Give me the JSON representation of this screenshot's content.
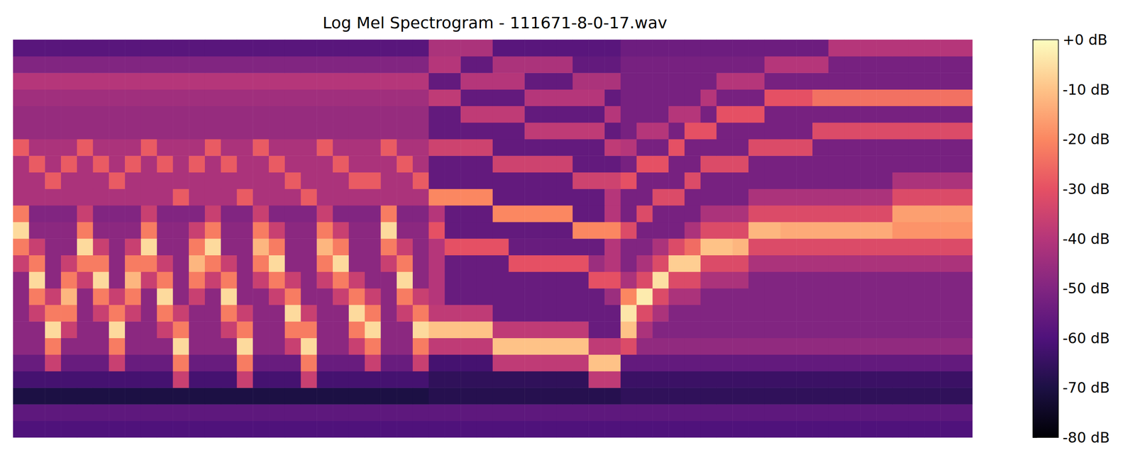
{
  "chart_data": {
    "type": "heatmap",
    "title": "Log Mel Spectrogram - 111671-8-0-17.wav",
    "tick_labels": false,
    "cells": [
      [
        -60,
        -60,
        -60,
        -60,
        -60,
        -60,
        -60,
        -60,
        -60,
        -60,
        -60,
        -60,
        -60,
        -60,
        -60,
        -60,
        -60,
        -60,
        -60,
        -60,
        -60,
        -60,
        -60,
        -60,
        -60,
        -60,
        -60,
        -60,
        -60,
        -60,
        -60,
        -60,
        -60,
        -60,
        -60,
        -60,
        -60,
        -60,
        -60,
        -60,
        -60,
        -60,
        -60,
        -60,
        -60,
        -60,
        -60,
        -60,
        -60,
        -60,
        -60,
        -60,
        -60,
        -60,
        -60,
        -60,
        -60,
        -60,
        -60,
        -60
      ],
      [
        -57,
        -57,
        -57,
        -57,
        -57,
        -57,
        -57,
        -57,
        -57,
        -57,
        -57,
        -57,
        -57,
        -57,
        -57,
        -57,
        -57,
        -57,
        -57,
        -57,
        -57,
        -57,
        -57,
        -57,
        -57,
        -57,
        -57,
        -57,
        -57,
        -57,
        -57,
        -57,
        -57,
        -57,
        -57,
        -57,
        -57,
        -57,
        -57,
        -57,
        -57,
        -57,
        -57,
        -57,
        -57,
        -57,
        -57,
        -57,
        -57,
        -57,
        -57,
        -57,
        -57,
        -57,
        -57,
        -57,
        -57,
        -57,
        -57,
        -57
      ],
      [
        -70,
        -70,
        -70,
        -70,
        -70,
        -70,
        -70,
        -70,
        -70,
        -70,
        -70,
        -70,
        -70,
        -70,
        -70,
        -70,
        -70,
        -70,
        -70,
        -70,
        -70,
        -70,
        -70,
        -70,
        -70,
        -70,
        -68,
        -68,
        -68,
        -68,
        -68,
        -68,
        -68,
        -68,
        -68,
        -68,
        -68,
        -68,
        -66,
        -66,
        -66,
        -66,
        -66,
        -66,
        -66,
        -66,
        -66,
        -66,
        -66,
        -66,
        -66,
        -66,
        -66,
        -66,
        -66,
        -66,
        -66,
        -66,
        -66,
        -66
      ],
      [
        -62,
        -62,
        -62,
        -62,
        -62,
        -62,
        -62,
        -62,
        -62,
        -62,
        -36,
        -62,
        -62,
        -62,
        -36,
        -62,
        -62,
        -62,
        -36,
        -62,
        -62,
        -62,
        -62,
        -62,
        -62,
        -62,
        -66,
        -66,
        -66,
        -66,
        -66,
        -66,
        -66,
        -66,
        -66,
        -66,
        -38,
        -38,
        -64,
        -64,
        -64,
        -64,
        -64,
        -64,
        -64,
        -64,
        -64,
        -64,
        -64,
        -64,
        -64,
        -64,
        -64,
        -64,
        -64,
        -64,
        -64,
        -64,
        -64,
        -64
      ],
      [
        -55,
        -55,
        -36,
        -55,
        -55,
        -55,
        -36,
        -55,
        -55,
        -55,
        -22,
        -55,
        -55,
        -55,
        -22,
        -55,
        -55,
        -55,
        -22,
        -55,
        -55,
        -55,
        -36,
        -55,
        -55,
        -36,
        -62,
        -62,
        -62,
        -62,
        -38,
        -38,
        -38,
        -38,
        -38,
        -38,
        -10,
        -10,
        -56,
        -56,
        -56,
        -56,
        -56,
        -56,
        -56,
        -56,
        -56,
        -56,
        -56,
        -56,
        -56,
        -56,
        -56,
        -56,
        -56,
        -56,
        -56,
        -56,
        -56,
        -56
      ],
      [
        -48,
        -48,
        -22,
        -48,
        -48,
        -48,
        -22,
        -48,
        -48,
        -48,
        -6,
        -48,
        -48,
        -48,
        -6,
        -48,
        -48,
        -36,
        -6,
        -48,
        -48,
        -36,
        -22,
        -48,
        -48,
        -22,
        -38,
        -38,
        -38,
        -38,
        -10,
        -10,
        -10,
        -10,
        -10,
        -10,
        -38,
        -38,
        -32,
        -47,
        -47,
        -47,
        -47,
        -47,
        -47,
        -47,
        -47,
        -47,
        -47,
        -47,
        -47,
        -47,
        -47,
        -47,
        -47,
        -47,
        -47,
        -47,
        -47,
        -47
      ],
      [
        -48,
        -48,
        -6,
        -36,
        -48,
        -48,
        -6,
        -48,
        -48,
        -36,
        -22,
        -48,
        -48,
        -36,
        -22,
        -48,
        -48,
        -22,
        -22,
        -48,
        -48,
        -22,
        -6,
        -48,
        -48,
        -6,
        -10,
        -10,
        -10,
        -10,
        -38,
        -38,
        -38,
        -38,
        -38,
        -38,
        -55,
        -55,
        -10,
        -42,
        -50,
        -50,
        -50,
        -50,
        -50,
        -50,
        -50,
        -50,
        -50,
        -50,
        -50,
        -50,
        -50,
        -50,
        -50,
        -50,
        -50,
        -50,
        -50,
        -50
      ],
      [
        -48,
        -36,
        -22,
        -22,
        -48,
        -36,
        -22,
        -36,
        -48,
        -22,
        -36,
        -48,
        -48,
        -22,
        -36,
        -48,
        -48,
        -6,
        -36,
        -48,
        -48,
        -6,
        -22,
        -48,
        -36,
        -22,
        -38,
        -38,
        -38,
        -38,
        -55,
        -55,
        -55,
        -55,
        -55,
        -55,
        -55,
        -55,
        -4,
        -32,
        -42,
        -50,
        -50,
        -50,
        -50,
        -50,
        -50,
        -50,
        -50,
        -50,
        -50,
        -50,
        -50,
        -50,
        -50,
        -50,
        -50,
        -50,
        -50,
        -50
      ],
      [
        -48,
        -22,
        -36,
        -12,
        -48,
        -22,
        -36,
        -22,
        -48,
        -6,
        -48,
        -36,
        -48,
        -6,
        -48,
        -48,
        -36,
        -22,
        -48,
        -48,
        -36,
        -22,
        -36,
        -48,
        -22,
        -36,
        -40,
        -55,
        -55,
        -55,
        -55,
        -55,
        -55,
        -55,
        -55,
        -55,
        -55,
        -45,
        -20,
        -3,
        -32,
        -42,
        -42,
        -50,
        -50,
        -50,
        -50,
        -50,
        -50,
        -50,
        -50,
        -50,
        -50,
        -50,
        -50,
        -50,
        -50,
        -50,
        -50,
        -50
      ],
      [
        -48,
        -6,
        -48,
        -22,
        -36,
        -6,
        -48,
        -12,
        -36,
        -22,
        -48,
        -22,
        -36,
        -22,
        -48,
        -36,
        -22,
        -36,
        -48,
        -36,
        -22,
        -36,
        -48,
        -48,
        -6,
        -48,
        -40,
        -55,
        -55,
        -55,
        -55,
        -55,
        -55,
        -55,
        -55,
        -55,
        -30,
        -30,
        -42,
        -32,
        -5,
        -32,
        -32,
        -42,
        -42,
        -42,
        -50,
        -50,
        -50,
        -50,
        -50,
        -50,
        -50,
        -50,
        -50,
        -50,
        -50,
        -50,
        -50,
        -50
      ],
      [
        -36,
        -22,
        -48,
        -36,
        -22,
        -22,
        -48,
        -22,
        -22,
        -36,
        -48,
        -12,
        -22,
        -36,
        -48,
        -22,
        -6,
        -48,
        -48,
        -22,
        -6,
        -48,
        -48,
        -36,
        -22,
        -48,
        -40,
        -55,
        -55,
        -55,
        -55,
        -30,
        -30,
        -30,
        -30,
        -30,
        -45,
        -40,
        -50,
        -42,
        -32,
        -8,
        -8,
        -32,
        -32,
        -32,
        -42,
        -42,
        -42,
        -42,
        -42,
        -42,
        -42,
        -42,
        -42,
        -42,
        -42,
        -42,
        -42,
        -42
      ],
      [
        -22,
        -36,
        -48,
        -48,
        -6,
        -36,
        -48,
        -36,
        -6,
        -48,
        -48,
        -22,
        -6,
        -48,
        -48,
        -12,
        -22,
        -48,
        -48,
        -12,
        -22,
        -48,
        -48,
        -22,
        -36,
        -48,
        -40,
        -30,
        -30,
        -30,
        -30,
        -55,
        -55,
        -55,
        -55,
        -55,
        -55,
        -40,
        -50,
        -50,
        -42,
        -32,
        -25,
        -10,
        -10,
        -12,
        -32,
        -32,
        -32,
        -32,
        -32,
        -32,
        -32,
        -32,
        -32,
        -32,
        -32,
        -32,
        -32,
        -32
      ],
      [
        -6,
        -48,
        -48,
        -48,
        -22,
        -48,
        -48,
        -48,
        -22,
        -48,
        -48,
        -36,
        -22,
        -48,
        -48,
        -22,
        -36,
        -48,
        -48,
        -22,
        -36,
        -48,
        -48,
        -6,
        -48,
        -48,
        -30,
        -56,
        -56,
        -56,
        -56,
        -56,
        -56,
        -56,
        -56,
        -20,
        -20,
        -20,
        -32,
        -52,
        -52,
        -52,
        -42,
        -32,
        -32,
        -32,
        -12,
        -12,
        -14,
        -14,
        -14,
        -14,
        -14,
        -14,
        -14,
        -18,
        -18,
        -18,
        -18,
        -18
      ],
      [
        -22,
        -50,
        -50,
        -50,
        -36,
        -50,
        -50,
        -50,
        -36,
        -50,
        -50,
        -50,
        -36,
        -50,
        -50,
        -36,
        -50,
        -50,
        -50,
        -36,
        -50,
        -50,
        -50,
        -22,
        -50,
        -50,
        -40,
        -56,
        -56,
        -56,
        -20,
        -20,
        -20,
        -20,
        -20,
        -56,
        -56,
        -40,
        -52,
        -32,
        -52,
        -52,
        -52,
        -42,
        -42,
        -42,
        -32,
        -32,
        -32,
        -32,
        -32,
        -32,
        -32,
        -32,
        -32,
        -16,
        -16,
        -16,
        -16,
        -16
      ],
      [
        -42,
        -42,
        -42,
        -42,
        -42,
        -42,
        -42,
        -42,
        -42,
        -42,
        -28,
        -42,
        -42,
        -42,
        -28,
        -42,
        -42,
        -42,
        -28,
        -42,
        -42,
        -42,
        -42,
        -42,
        -42,
        -42,
        -20,
        -20,
        -20,
        -20,
        -56,
        -56,
        -56,
        -56,
        -56,
        -56,
        -56,
        -40,
        -52,
        -52,
        -32,
        -32,
        -52,
        -52,
        -52,
        -52,
        -42,
        -42,
        -42,
        -42,
        -42,
        -42,
        -42,
        -42,
        -42,
        -32,
        -32,
        -32,
        -32,
        -32
      ],
      [
        -42,
        -42,
        -28,
        -42,
        -42,
        -42,
        -28,
        -42,
        -42,
        -42,
        -42,
        -42,
        -42,
        -42,
        -42,
        -42,
        -42,
        -28,
        -42,
        -42,
        -42,
        -28,
        -28,
        -42,
        -42,
        -28,
        -56,
        -56,
        -56,
        -56,
        -56,
        -56,
        -56,
        -56,
        -56,
        -35,
        -35,
        -35,
        -30,
        -52,
        -52,
        -52,
        -32,
        -52,
        -52,
        -52,
        -52,
        -52,
        -52,
        -52,
        -52,
        -52,
        -52,
        -52,
        -52,
        -42,
        -42,
        -42,
        -42,
        -42
      ],
      [
        -42,
        -28,
        -42,
        -28,
        -42,
        -28,
        -42,
        -28,
        -42,
        -28,
        -42,
        -28,
        -42,
        -28,
        -42,
        -42,
        -28,
        -42,
        -42,
        -42,
        -28,
        -42,
        -42,
        -42,
        -28,
        -42,
        -56,
        -56,
        -56,
        -56,
        -35,
        -35,
        -35,
        -35,
        -35,
        -56,
        -56,
        -56,
        -52,
        -30,
        -30,
        -52,
        -52,
        -32,
        -32,
        -32,
        -52,
        -52,
        -52,
        -52,
        -52,
        -52,
        -52,
        -52,
        -52,
        -52,
        -52,
        -52,
        -52,
        -52
      ],
      [
        -28,
        -42,
        -42,
        -42,
        -28,
        -42,
        -42,
        -42,
        -28,
        -42,
        -42,
        -42,
        -28,
        -42,
        -42,
        -28,
        -42,
        -42,
        -42,
        -28,
        -42,
        -42,
        -42,
        -28,
        -42,
        -42,
        -35,
        -35,
        -35,
        -35,
        -56,
        -56,
        -56,
        -56,
        -56,
        -56,
        -56,
        -38,
        -40,
        -52,
        -52,
        -30,
        -52,
        -52,
        -52,
        -52,
        -32,
        -32,
        -32,
        -32,
        -52,
        -52,
        -52,
        -52,
        -52,
        -52,
        -52,
        -52,
        -52,
        -52
      ],
      [
        -46,
        -46,
        -46,
        -46,
        -46,
        -46,
        -46,
        -46,
        -46,
        -46,
        -46,
        -46,
        -46,
        -46,
        -46,
        -46,
        -46,
        -46,
        -46,
        -46,
        -46,
        -46,
        -46,
        -46,
        -46,
        -46,
        -56,
        -56,
        -56,
        -56,
        -56,
        -56,
        -38,
        -38,
        -38,
        -38,
        -38,
        -56,
        -52,
        -40,
        -40,
        -52,
        -30,
        -30,
        -52,
        -52,
        -52,
        -52,
        -52,
        -52,
        -32,
        -32,
        -32,
        -32,
        -32,
        -32,
        -32,
        -32,
        -32,
        -32
      ],
      [
        -46,
        -46,
        -46,
        -46,
        -46,
        -46,
        -46,
        -46,
        -46,
        -46,
        -46,
        -46,
        -46,
        -46,
        -46,
        -46,
        -46,
        -46,
        -46,
        -46,
        -46,
        -46,
        -46,
        -46,
        -46,
        -46,
        -56,
        -56,
        -38,
        -38,
        -38,
        -38,
        -56,
        -56,
        -56,
        -56,
        -56,
        -40,
        -52,
        -52,
        -52,
        -40,
        -40,
        -52,
        -30,
        -30,
        -30,
        -52,
        -52,
        -52,
        -52,
        -52,
        -52,
        -52,
        -52,
        -52,
        -52,
        -52,
        -52,
        -52
      ],
      [
        -44,
        -44,
        -44,
        -44,
        -44,
        -44,
        -44,
        -44,
        -44,
        -44,
        -44,
        -44,
        -44,
        -44,
        -44,
        -44,
        -44,
        -44,
        -44,
        -44,
        -44,
        -44,
        -44,
        -44,
        -44,
        -44,
        -38,
        -38,
        -56,
        -56,
        -56,
        -56,
        -40,
        -40,
        -40,
        -40,
        -40,
        -56,
        -52,
        -52,
        -52,
        -52,
        -52,
        -40,
        -52,
        -52,
        -52,
        -30,
        -30,
        -30,
        -24,
        -24,
        -24,
        -24,
        -24,
        -24,
        -24,
        -24,
        -24,
        -24
      ],
      [
        -40,
        -40,
        -40,
        -40,
        -40,
        -40,
        -40,
        -40,
        -40,
        -40,
        -40,
        -40,
        -40,
        -40,
        -40,
        -40,
        -40,
        -40,
        -40,
        -40,
        -40,
        -40,
        -40,
        -40,
        -40,
        -40,
        -56,
        -56,
        -40,
        -40,
        -40,
        -40,
        -56,
        -56,
        -56,
        -42,
        -42,
        -42,
        -52,
        -52,
        -52,
        -52,
        -52,
        -52,
        -40,
        -40,
        -40,
        -52,
        -52,
        -52,
        -52,
        -52,
        -52,
        -52,
        -52,
        -52,
        -52,
        -52,
        -52,
        -52
      ],
      [
        -50,
        -50,
        -50,
        -50,
        -50,
        -50,
        -50,
        -50,
        -50,
        -50,
        -50,
        -50,
        -50,
        -50,
        -50,
        -50,
        -50,
        -50,
        -50,
        -50,
        -50,
        -50,
        -50,
        -50,
        -50,
        -50,
        -40,
        -40,
        -56,
        -56,
        -42,
        -42,
        -42,
        -42,
        -42,
        -56,
        -56,
        -56,
        -52,
        -52,
        -52,
        -52,
        -52,
        -52,
        -52,
        -52,
        -52,
        -40,
        -40,
        -40,
        -40,
        -52,
        -52,
        -52,
        -52,
        -52,
        -52,
        -52,
        -52,
        -52
      ],
      [
        -58,
        -58,
        -58,
        -58,
        -58,
        -58,
        -58,
        -58,
        -58,
        -58,
        -58,
        -58,
        -58,
        -58,
        -58,
        -58,
        -58,
        -58,
        -58,
        -58,
        -58,
        -58,
        -58,
        -58,
        -58,
        -58,
        -42,
        -42,
        -42,
        -42,
        -58,
        -58,
        -58,
        -58,
        -58,
        -58,
        -58,
        -58,
        -54,
        -54,
        -54,
        -54,
        -54,
        -54,
        -54,
        -54,
        -54,
        -54,
        -54,
        -54,
        -54,
        -40,
        -40,
        -40,
        -40,
        -40,
        -40,
        -40,
        -40,
        -40
      ]
    ],
    "colorbar_lim": [
      -80,
      0
    ],
    "colorbar_ticks": [
      {
        "value": 0,
        "label": "+0 dB"
      },
      {
        "value": -10,
        "label": "-10 dB"
      },
      {
        "value": -20,
        "label": "-20 dB"
      },
      {
        "value": -30,
        "label": "-30 dB"
      },
      {
        "value": -40,
        "label": "-40 dB"
      },
      {
        "value": -50,
        "label": "-50 dB"
      },
      {
        "value": -60,
        "label": "-60 dB"
      },
      {
        "value": -70,
        "label": "-70 dB"
      },
      {
        "value": -80,
        "label": "-80 dB"
      }
    ]
  }
}
